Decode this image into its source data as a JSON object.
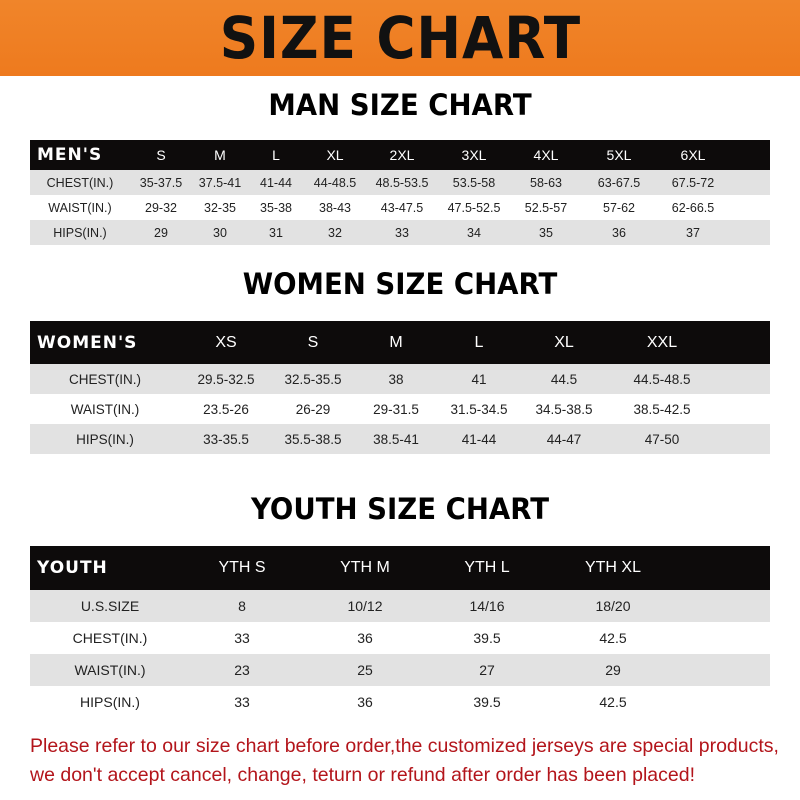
{
  "banner": "SIZE CHART",
  "men": {
    "title": "MAN SIZE CHART",
    "header": [
      "MEN'S",
      "S",
      "M",
      "L",
      "XL",
      "2XL",
      "3XL",
      "4XL",
      "5XL",
      "6XL"
    ],
    "rows": [
      [
        "CHEST(IN.)",
        "35-37.5",
        "37.5-41",
        "41-44",
        "44-48.5",
        "48.5-53.5",
        "53.5-58",
        "58-63",
        "63-67.5",
        "67.5-72"
      ],
      [
        "WAIST(IN.)",
        "29-32",
        "32-35",
        "35-38",
        "38-43",
        "43-47.5",
        "47.5-52.5",
        "52.5-57",
        "57-62",
        "62-66.5"
      ],
      [
        "HIPS(IN.)",
        "29",
        "30",
        "31",
        "32",
        "33",
        "34",
        "35",
        "36",
        "37"
      ]
    ]
  },
  "women": {
    "title": "WOMEN SIZE CHART",
    "header": [
      "WOMEN'S",
      "XS",
      "S",
      "M",
      "L",
      "XL",
      "XXL"
    ],
    "rows": [
      [
        "CHEST(IN.)",
        "29.5-32.5",
        "32.5-35.5",
        "38",
        "41",
        "44.5",
        "44.5-48.5"
      ],
      [
        "WAIST(IN.)",
        "23.5-26",
        "26-29",
        "29-31.5",
        "31.5-34.5",
        "34.5-38.5",
        "38.5-42.5"
      ],
      [
        "HIPS(IN.)",
        "33-35.5",
        "35.5-38.5",
        "38.5-41",
        "41-44",
        "44-47",
        "47-50"
      ]
    ]
  },
  "youth": {
    "title": "YOUTH SIZE CHART",
    "header": [
      "YOUTH",
      "YTH S",
      "YTH M",
      "YTH L",
      "YTH XL"
    ],
    "rows": [
      [
        "U.S.SIZE",
        "8",
        "10/12",
        "14/16",
        "18/20"
      ],
      [
        "CHEST(IN.)",
        "33",
        "36",
        "39.5",
        "42.5"
      ],
      [
        "WAIST(IN.)",
        "23",
        "25",
        "27",
        "29"
      ],
      [
        "HIPS(IN.)",
        "33",
        "36",
        "39.5",
        "42.5"
      ]
    ]
  },
  "notice": {
    "line1": "Please refer to our size chart before order,the customized jerseys are special products,",
    "line2": "we don't accept cancel, change, teturn or refund after order has been placed!"
  },
  "colors": {
    "banner": "#ee7a1e",
    "header_row": "#0d0b0b",
    "stripe": "#e2e2e2",
    "notice": "#b3151b"
  }
}
